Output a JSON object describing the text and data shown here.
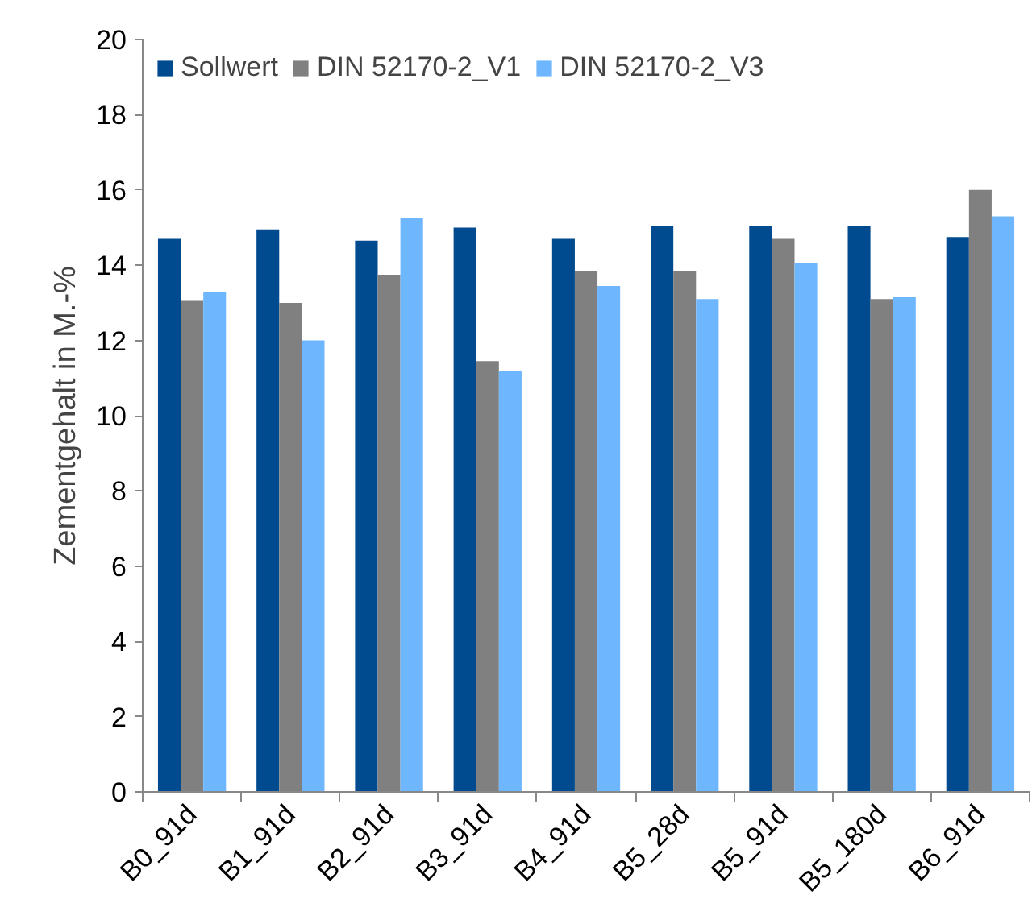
{
  "chart_data": {
    "type": "bar",
    "ylabel": "Zementgehalt in M.-%",
    "categories": [
      "B0_91d",
      "B1_91d",
      "B2_91d",
      "B3_91d",
      "B4_91d",
      "B5_28d",
      "B5_91d",
      "B5_180d",
      "B6_91d"
    ],
    "series": [
      {
        "name": "Sollwert",
        "color": "#004a8f",
        "values": [
          14.7,
          14.95,
          14.65,
          15.0,
          14.7,
          15.05,
          15.05,
          15.05,
          14.75
        ]
      },
      {
        "name": "DIN 52170-2_V1",
        "color": "#808080",
        "values": [
          13.05,
          13.0,
          13.75,
          11.45,
          13.85,
          13.85,
          14.7,
          13.1,
          16.0
        ]
      },
      {
        "name": "DIN 52170-2_V3",
        "color": "#6eb7ff",
        "values": [
          13.3,
          12.0,
          15.25,
          11.2,
          13.45,
          13.1,
          14.05,
          13.15,
          15.3
        ]
      }
    ],
    "ylim": [
      0,
      20
    ],
    "yticks": [
      0,
      2,
      4,
      6,
      8,
      10,
      12,
      14,
      16,
      18,
      20
    ],
    "grid": false,
    "legend": "top"
  }
}
